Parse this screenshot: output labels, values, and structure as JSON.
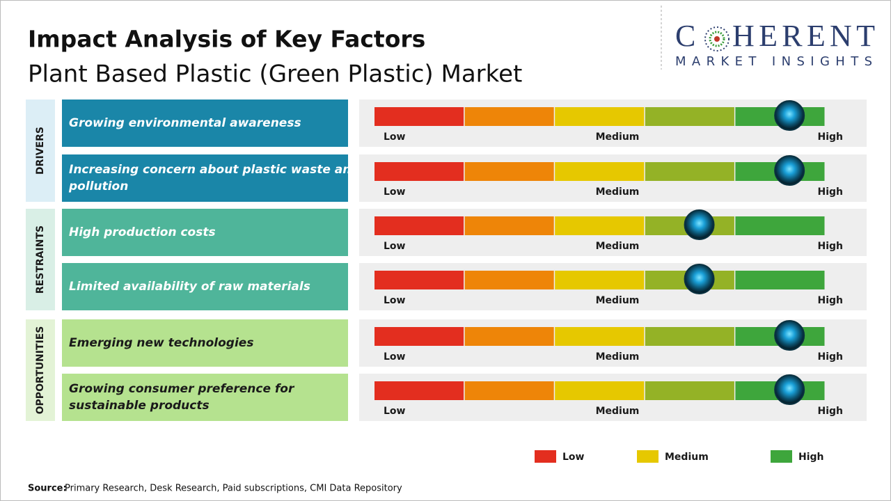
{
  "header": {
    "title": "Impact Analysis of Key Factors",
    "subtitle": "Plant Based Plastic (Green Plastic) Market"
  },
  "logo": {
    "lead": "C",
    "rest": "HERENT",
    "tagline": "MARKET INSIGHTS"
  },
  "scale": {
    "min": 0,
    "max": 5,
    "ticks": [
      {
        "value": 0,
        "label": "Low"
      },
      {
        "value": 2.5,
        "label": "Medium"
      },
      {
        "value": 5,
        "label": "High"
      }
    ],
    "colors": [
      "#e32e1f",
      "#ee8508",
      "#e6c800",
      "#94b226",
      "#3ea63c"
    ]
  },
  "groups": [
    {
      "name": "DRIVERS",
      "color": "#1a86a8",
      "tint": "#dceef6",
      "text_color": "#ffffff",
      "factors": [
        {
          "text": "Growing environmental awareness",
          "impact": 4.6
        },
        {
          "text": "Increasing concern about plastic waste and pollution",
          "impact": 4.6
        }
      ]
    },
    {
      "name": "RESTRAINTS",
      "color": "#4fb59a",
      "tint": "#d9efe6",
      "text_color": "#ffffff",
      "factors": [
        {
          "text": "High production costs",
          "impact": 3.6
        },
        {
          "text": "Limited availability of raw materials",
          "impact": 3.6
        }
      ]
    },
    {
      "name": "OPPORTUNITIES",
      "color": "#b5e28f",
      "tint": "#e3f3d6",
      "text_color": "#1a1a1a",
      "factors": [
        {
          "text": "Emerging new technologies",
          "impact": 4.6
        },
        {
          "text": "Growing consumer preference for sustainable products",
          "impact": 4.6
        }
      ]
    }
  ],
  "legend": [
    {
      "label": "Low",
      "color": "#e32e1f"
    },
    {
      "label": "Medium",
      "color": "#e6c800"
    },
    {
      "label": "High",
      "color": "#3ea63c"
    }
  ],
  "source": {
    "label": "Source:",
    "text": "Primary Research, Desk Research, Paid subscriptions, CMI Data Repository"
  }
}
